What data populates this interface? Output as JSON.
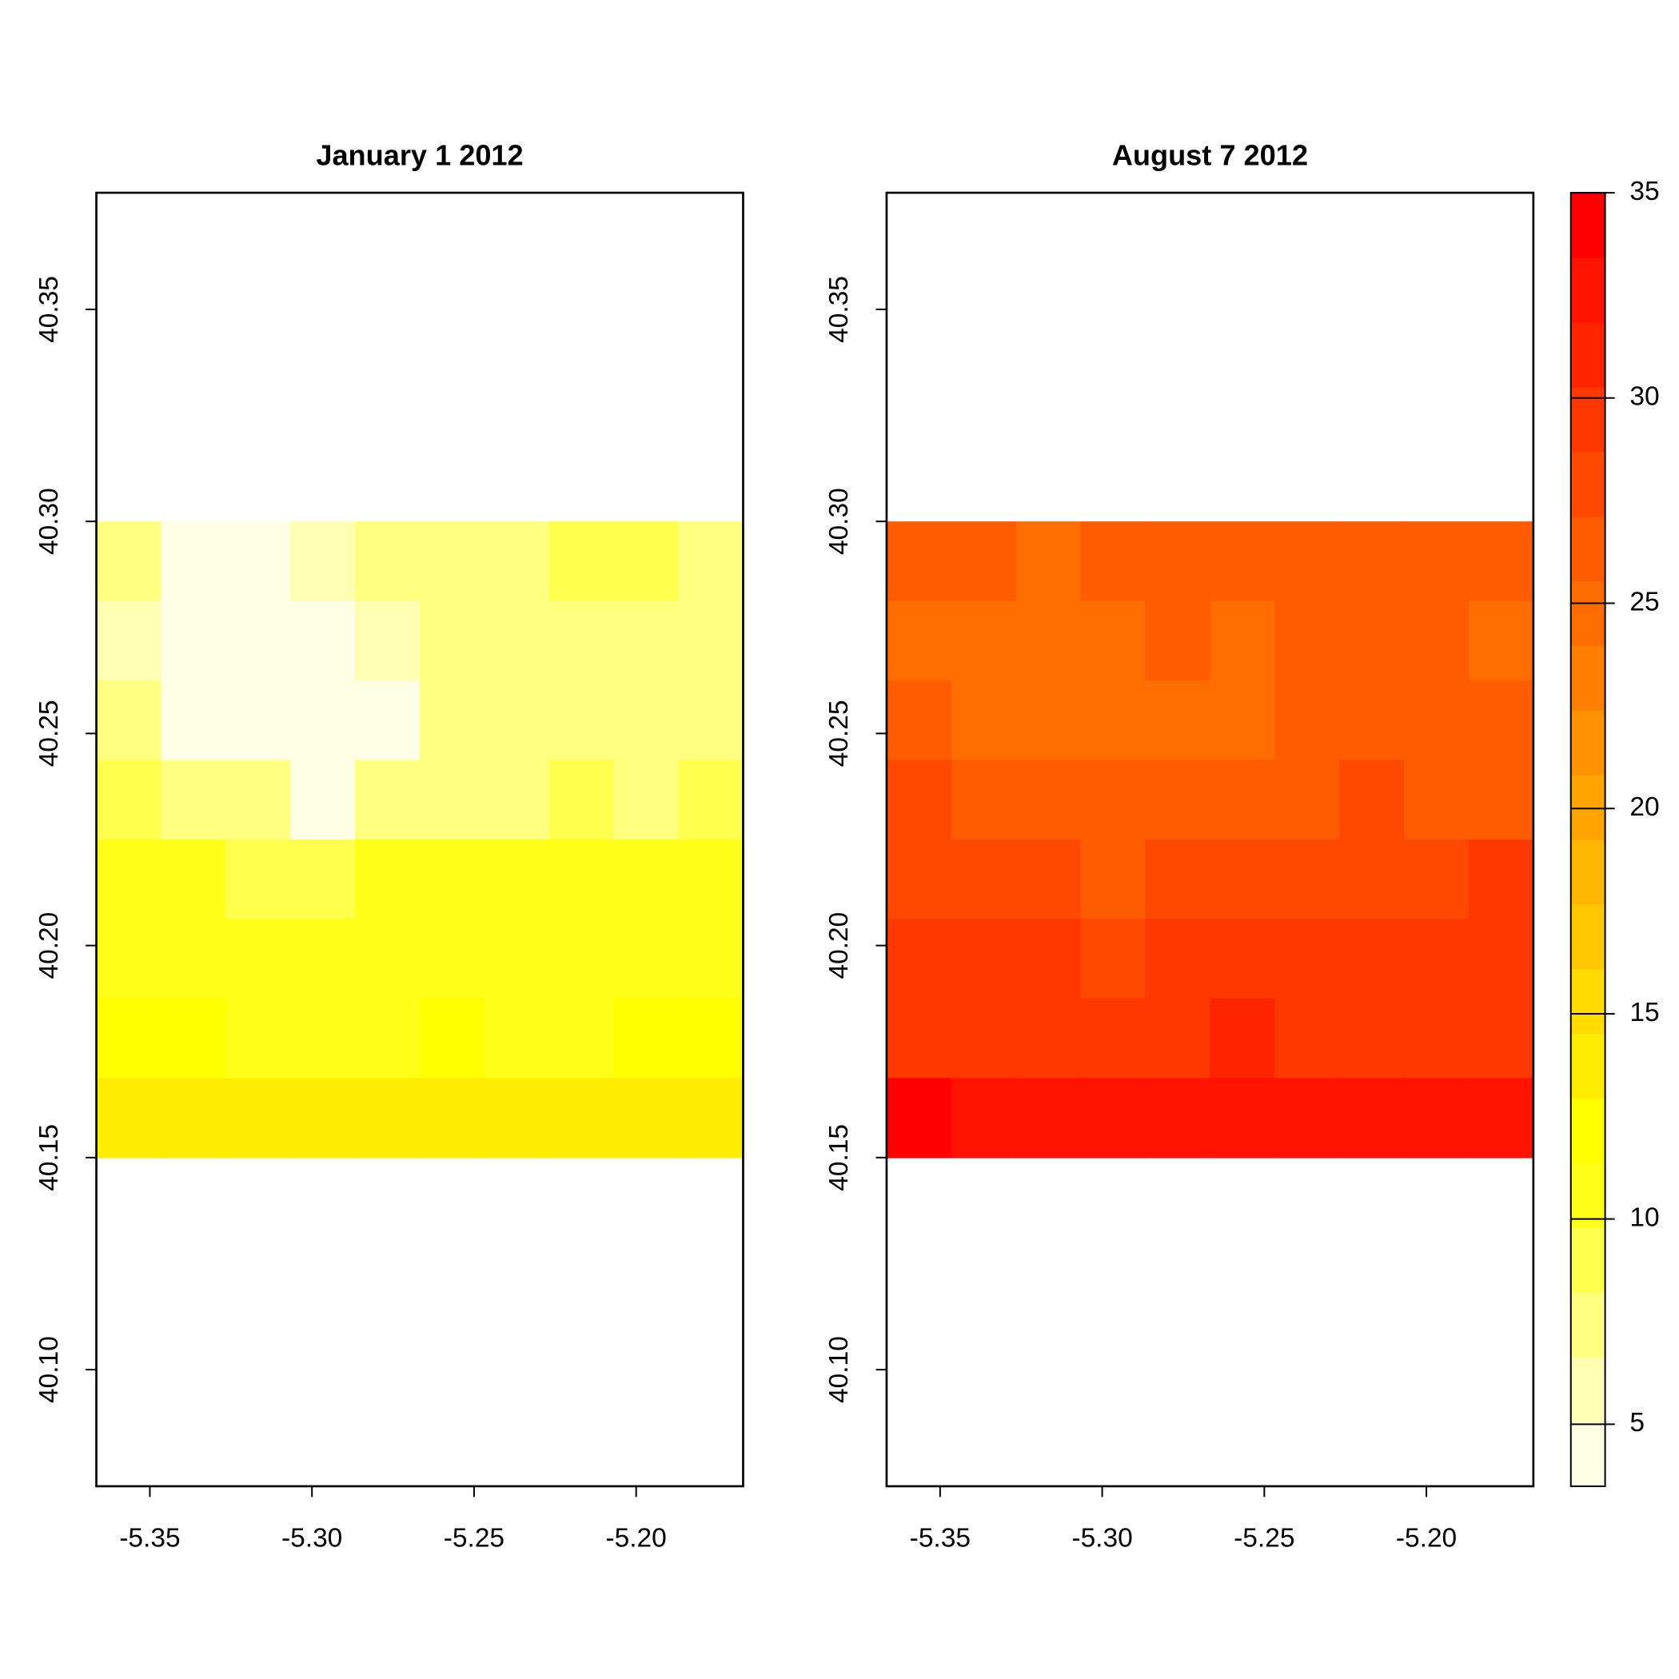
{
  "chart_data": [
    {
      "type": "raster",
      "title": "January 1 2012",
      "xlim": [
        -5.3665,
        -5.167
      ],
      "ylim": [
        40.0725,
        40.3775
      ],
      "xticks": [
        {
          "value": -5.35,
          "label": "-5.35"
        },
        {
          "value": -5.3,
          "label": "-5.30"
        },
        {
          "value": -5.25,
          "label": "-5.25"
        },
        {
          "value": -5.2,
          "label": "-5.20"
        }
      ],
      "yticks": [
        {
          "value": 40.1,
          "label": "40.10"
        },
        {
          "value": 40.15,
          "label": "40.15"
        },
        {
          "value": 40.2,
          "label": "40.20"
        },
        {
          "value": 40.25,
          "label": "40.25"
        },
        {
          "value": 40.3,
          "label": "40.30"
        },
        {
          "value": 40.35,
          "label": "40.35"
        }
      ],
      "extent": [
        -5.3665,
        -5.167,
        40.15,
        40.3
      ],
      "z": [
        [
          7,
          5,
          5,
          6,
          7,
          8,
          8,
          9,
          9,
          8
        ],
        [
          6,
          5,
          4,
          4,
          6,
          7,
          8,
          8,
          7,
          8
        ],
        [
          8,
          5,
          4,
          4,
          5,
          8,
          8,
          8,
          7,
          8
        ],
        [
          9,
          8,
          7,
          5,
          8,
          7,
          8,
          9,
          8,
          9
        ],
        [
          10,
          10,
          9,
          9,
          10,
          10,
          10,
          10,
          11,
          10
        ],
        [
          11,
          11,
          11,
          11,
          11,
          11,
          11,
          11,
          11,
          11
        ],
        [
          12,
          12,
          11,
          11,
          11,
          12,
          11,
          11,
          12,
          12
        ],
        [
          13,
          14,
          14,
          13,
          13,
          13,
          13,
          13,
          14,
          13
        ]
      ]
    },
    {
      "type": "raster",
      "title": "August 7 2012",
      "xlim": [
        -5.3665,
        -5.167
      ],
      "ylim": [
        40.0725,
        40.3775
      ],
      "xticks": [
        {
          "value": -5.35,
          "label": "-5.35"
        },
        {
          "value": -5.3,
          "label": "-5.30"
        },
        {
          "value": -5.25,
          "label": "-5.25"
        },
        {
          "value": -5.2,
          "label": "-5.20"
        }
      ],
      "yticks": [
        {
          "value": 40.1,
          "label": "40.10"
        },
        {
          "value": 40.15,
          "label": "40.15"
        },
        {
          "value": 40.2,
          "label": "40.20"
        },
        {
          "value": 40.25,
          "label": "40.25"
        },
        {
          "value": 40.3,
          "label": "40.30"
        },
        {
          "value": 40.35,
          "label": "40.35"
        }
      ],
      "extent": [
        -5.3665,
        -5.167,
        40.15,
        40.3
      ],
      "z": [
        [
          26,
          26,
          25,
          26,
          27,
          26,
          26,
          26,
          27,
          27
        ],
        [
          25,
          25,
          25,
          25,
          26,
          25,
          26,
          26,
          26,
          25
        ],
        [
          26,
          25,
          25,
          25,
          25,
          25,
          26,
          26,
          26,
          26
        ],
        [
          28,
          27,
          26,
          27,
          26,
          27,
          27,
          28,
          27,
          27
        ],
        [
          28,
          28,
          28,
          27,
          28,
          28,
          28,
          28,
          28,
          29
        ],
        [
          30,
          29,
          29,
          28,
          29,
          29,
          30,
          29,
          29,
          29
        ],
        [
          30,
          30,
          30,
          29,
          30,
          31,
          30,
          30,
          29,
          30
        ],
        [
          34,
          33,
          33,
          33,
          33,
          33,
          33,
          33,
          33,
          33
        ]
      ]
    }
  ],
  "colorbar": {
    "zlim": [
      3.49,
      35
    ],
    "ticks": [
      5,
      10,
      15,
      20,
      25,
      30,
      35
    ],
    "colors": [
      "#FFFFE6",
      "#FFFFB3",
      "#FFFF80",
      "#FFFF4D",
      "#FFFF1A",
      "#FFFF00",
      "#FFED00",
      "#FFDB00",
      "#FFC800",
      "#FFB600",
      "#FFA400",
      "#FF9200",
      "#FF8000",
      "#FF6D00",
      "#FF5B00",
      "#FF4900",
      "#FF3700",
      "#FF2400",
      "#FF1200",
      "#FF0000"
    ]
  }
}
